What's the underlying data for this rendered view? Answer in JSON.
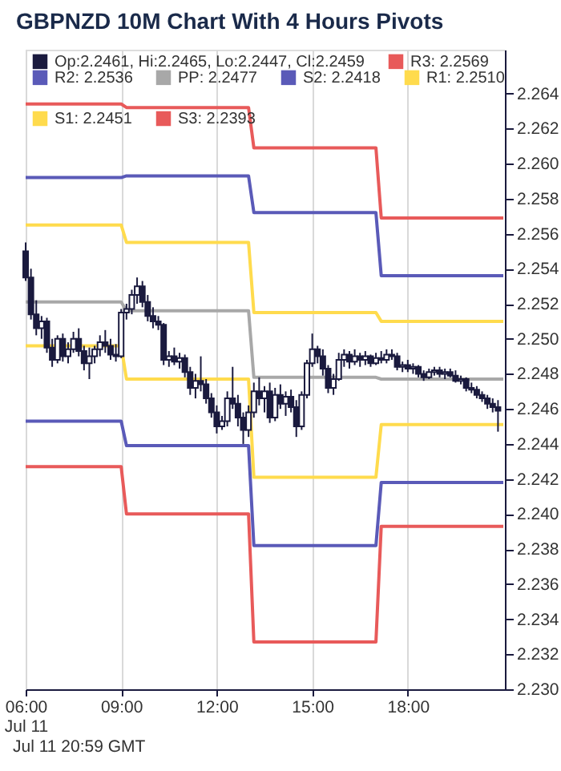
{
  "chart_data": {
    "type": "candlestick",
    "title": "GBPNZD 10M Chart With 4 Hours Pivots",
    "xlim": [
      6,
      21.05
    ],
    "ylim": [
      2.23,
      2.2665
    ],
    "xticks": [
      {
        "value": 6,
        "label": "06:00\nJul 11"
      },
      {
        "value": 9,
        "label": "09:00"
      },
      {
        "value": 12,
        "label": "12:00"
      },
      {
        "value": 15,
        "label": "15:00"
      },
      {
        "value": 18,
        "label": "18:00"
      }
    ],
    "yticks": [
      {
        "value": 2.23,
        "label": "2.230"
      },
      {
        "value": 2.232,
        "label": "2.232"
      },
      {
        "value": 2.234,
        "label": "2.234"
      },
      {
        "value": 2.236,
        "label": "2.236"
      },
      {
        "value": 2.238,
        "label": "2.238"
      },
      {
        "value": 2.24,
        "label": "2.240"
      },
      {
        "value": 2.242,
        "label": "2.242"
      },
      {
        "value": 2.244,
        "label": "2.244"
      },
      {
        "value": 2.246,
        "label": "2.246"
      },
      {
        "value": 2.248,
        "label": "2.248"
      },
      {
        "value": 2.25,
        "label": "2.250"
      },
      {
        "value": 2.252,
        "label": "2.252"
      },
      {
        "value": 2.254,
        "label": "2.254"
      },
      {
        "value": 2.256,
        "label": "2.256"
      },
      {
        "value": 2.258,
        "label": "2.258"
      },
      {
        "value": 2.26,
        "label": "2.260"
      },
      {
        "value": 2.262,
        "label": "2.262"
      },
      {
        "value": 2.264,
        "label": "2.264"
      }
    ],
    "grid": "x",
    "legend": "top left",
    "annotations": [
      "Jul 11 20:59 GMT"
    ],
    "series": [
      {
        "name": "Op:2.2461, Hi:2.2465, Lo:2.2447, Cl:2.2459",
        "type": "candlestick",
        "color": "#1a1a3e",
        "x": [
          6,
          6.1667,
          6.3333,
          6.5,
          6.6667,
          6.8333,
          7,
          7.1667,
          7.3333,
          7.5,
          7.6667,
          7.8333,
          8,
          8.1667,
          8.3333,
          8.5,
          8.6667,
          8.8333,
          9,
          9.1667,
          9.3333,
          9.5,
          9.6667,
          9.8333,
          10,
          10.1667,
          10.3333,
          10.5,
          10.6667,
          10.8333,
          11,
          11.1667,
          11.3333,
          11.5,
          11.6667,
          11.8333,
          12,
          12.1667,
          12.3333,
          12.5,
          12.6667,
          12.8333,
          13,
          13.1667,
          13.3333,
          13.5,
          13.6667,
          13.8333,
          14,
          14.1667,
          14.3333,
          14.5,
          14.6667,
          14.8333,
          15,
          15.1667,
          15.3333,
          15.5,
          15.6667,
          15.8333,
          16,
          16.1667,
          16.3333,
          16.5,
          16.6667,
          16.8333,
          17,
          17.1667,
          17.3333,
          17.5,
          17.6667,
          17.8333,
          18,
          18.1667,
          18.3333,
          18.5,
          18.6667,
          18.8333,
          19,
          19.1667,
          19.3333,
          19.5,
          19.6667,
          19.8333,
          20,
          20.1667,
          20.3333,
          20.5,
          20.6667,
          20.8333
        ],
        "ohlc": [
          [
            2.255,
            2.2555,
            2.2533,
            2.2535
          ],
          [
            2.2535,
            2.254,
            2.2511,
            2.2514
          ],
          [
            2.2514,
            2.2522,
            2.2502,
            2.2506
          ],
          [
            2.2506,
            2.2513,
            2.25,
            2.251
          ],
          [
            2.251,
            2.2512,
            2.2492,
            2.2495
          ],
          [
            2.2495,
            2.25,
            2.2484,
            2.2488
          ],
          [
            2.2488,
            2.2502,
            2.2486,
            2.25
          ],
          [
            2.25,
            2.2503,
            2.2487,
            2.249
          ],
          [
            2.249,
            2.2498,
            2.2486,
            2.2494
          ],
          [
            2.2494,
            2.2504,
            2.2492,
            2.25
          ],
          [
            2.25,
            2.2506,
            2.249,
            2.2493
          ],
          [
            2.2493,
            2.2496,
            2.2482,
            2.2486
          ],
          [
            2.2486,
            2.2495,
            2.2477,
            2.249
          ],
          [
            2.249,
            2.2496,
            2.2486,
            2.2494
          ],
          [
            2.2494,
            2.2502,
            2.249,
            2.2498
          ],
          [
            2.2498,
            2.2505,
            2.2492,
            2.2496
          ],
          [
            2.2496,
            2.25,
            2.2488,
            2.2491
          ],
          [
            2.2491,
            2.2497,
            2.2487,
            2.249
          ],
          [
            2.249,
            2.2517,
            2.2489,
            2.2515
          ],
          [
            2.2515,
            2.252,
            2.2511,
            2.2517
          ],
          [
            2.2517,
            2.2528,
            2.2514,
            2.2525
          ],
          [
            2.2525,
            2.2535,
            2.252,
            2.253
          ],
          [
            2.253,
            2.2533,
            2.2518,
            2.2521
          ],
          [
            2.2521,
            2.2525,
            2.251,
            2.2513
          ],
          [
            2.2513,
            2.2518,
            2.2506,
            2.251
          ],
          [
            2.251,
            2.2513,
            2.2505,
            2.2508
          ],
          [
            2.2508,
            2.2509,
            2.2485,
            2.2488
          ],
          [
            2.2488,
            2.2493,
            2.2484,
            2.249
          ],
          [
            2.249,
            2.2495,
            2.2485,
            2.2487
          ],
          [
            2.2487,
            2.2492,
            2.2483,
            2.2489
          ],
          [
            2.2489,
            2.2491,
            2.2478,
            2.2481
          ],
          [
            2.2481,
            2.2484,
            2.2468,
            2.2472
          ],
          [
            2.2472,
            2.248,
            2.2466,
            2.2476
          ],
          [
            2.2476,
            2.249,
            2.247,
            2.2474
          ],
          [
            2.2474,
            2.2477,
            2.2463,
            2.2466
          ],
          [
            2.2466,
            2.2469,
            2.2455,
            2.2458
          ],
          [
            2.2458,
            2.2462,
            2.2446,
            2.245
          ],
          [
            2.245,
            2.2456,
            2.2448,
            2.2453
          ],
          [
            2.2453,
            2.247,
            2.245,
            2.2466
          ],
          [
            2.2466,
            2.2484,
            2.246,
            2.2463
          ],
          [
            2.2463,
            2.2468,
            2.245,
            2.2455
          ],
          [
            2.2455,
            2.2458,
            2.244,
            2.2448
          ],
          [
            2.2448,
            2.2462,
            2.2444,
            2.2458
          ],
          [
            2.2458,
            2.2475,
            2.2455,
            2.247
          ],
          [
            2.247,
            2.2478,
            2.2462,
            2.2466
          ],
          [
            2.2466,
            2.2473,
            2.2458,
            2.247
          ],
          [
            2.247,
            2.2475,
            2.2452,
            2.2455
          ],
          [
            2.2455,
            2.2472,
            2.2453,
            2.2468
          ],
          [
            2.2468,
            2.2474,
            2.246,
            2.2463
          ],
          [
            2.2463,
            2.247,
            2.2456,
            2.2467
          ],
          [
            2.2467,
            2.2471,
            2.2458,
            2.2461
          ],
          [
            2.2461,
            2.2465,
            2.2444,
            2.245
          ],
          [
            2.245,
            2.247,
            2.2448,
            2.2468
          ],
          [
            2.2468,
            2.2488,
            2.2466,
            2.2486
          ],
          [
            2.2486,
            2.2503,
            2.2484,
            2.2494
          ],
          [
            2.2494,
            2.2496,
            2.2486,
            2.249
          ],
          [
            2.249,
            2.2494,
            2.2479,
            2.2483
          ],
          [
            2.2483,
            2.2485,
            2.2469,
            2.2472
          ],
          [
            2.2472,
            2.248,
            2.2468,
            2.2477
          ],
          [
            2.2477,
            2.2492,
            2.2476,
            2.2488
          ],
          [
            2.2488,
            2.2494,
            2.2484,
            2.2491
          ],
          [
            2.2491,
            2.2493,
            2.2483,
            2.2487
          ],
          [
            2.2487,
            2.2494,
            2.2485,
            2.249
          ],
          [
            2.249,
            2.2492,
            2.2484,
            2.2488
          ],
          [
            2.2488,
            2.2493,
            2.2485,
            2.249
          ],
          [
            2.249,
            2.2491,
            2.2484,
            2.2486
          ],
          [
            2.2486,
            2.2492,
            2.2485,
            2.2489
          ],
          [
            2.2489,
            2.2493,
            2.2486,
            2.2488
          ],
          [
            2.2488,
            2.2494,
            2.2486,
            2.2491
          ],
          [
            2.2491,
            2.2494,
            2.2488,
            2.249
          ],
          [
            2.249,
            2.2492,
            2.2482,
            2.2484
          ],
          [
            2.2484,
            2.2487,
            2.2481,
            2.2485
          ],
          [
            2.2485,
            2.2488,
            2.2481,
            2.2483
          ],
          [
            2.2483,
            2.2486,
            2.248,
            2.2484
          ],
          [
            2.2484,
            2.2485,
            2.2478,
            2.248
          ],
          [
            2.248,
            2.2482,
            2.2476,
            2.2478
          ],
          [
            2.2478,
            2.2483,
            2.2477,
            2.2481
          ],
          [
            2.2481,
            2.2484,
            2.2479,
            2.2482
          ],
          [
            2.2482,
            2.2484,
            2.2478,
            2.248
          ],
          [
            2.248,
            2.2483,
            2.2477,
            2.2481
          ],
          [
            2.2481,
            2.2483,
            2.2478,
            2.2479
          ],
          [
            2.2479,
            2.2482,
            2.2475,
            2.2476
          ],
          [
            2.2476,
            2.2479,
            2.2474,
            2.2477
          ],
          [
            2.2477,
            2.2478,
            2.247,
            2.2472
          ],
          [
            2.2472,
            2.2475,
            2.2469,
            2.2471
          ],
          [
            2.2471,
            2.2473,
            2.2466,
            2.2468
          ],
          [
            2.2468,
            2.247,
            2.2464,
            2.2466
          ],
          [
            2.2466,
            2.2468,
            2.246,
            2.2463
          ],
          [
            2.2463,
            2.2466,
            2.2458,
            2.2461
          ],
          [
            2.2461,
            2.2465,
            2.2447,
            2.2459
          ]
        ]
      },
      {
        "name": "R3: 2.2569",
        "type": "line",
        "color": "#e85a5a",
        "x": [
          6,
          9,
          9.1667,
          13,
          13.1667,
          17,
          17.1667,
          21
        ],
        "values": [
          2.2634,
          2.2634,
          2.2632,
          2.2632,
          2.2609,
          2.2609,
          2.2569,
          2.2569
        ]
      },
      {
        "name": "R2: 2.2536",
        "type": "line",
        "color": "#5a5ab8",
        "x": [
          6,
          9,
          9.1667,
          13,
          13.1667,
          17,
          17.1667,
          21
        ],
        "values": [
          2.2592,
          2.2592,
          2.2593,
          2.2593,
          2.2572,
          2.2572,
          2.2536,
          2.2536
        ]
      },
      {
        "name": "R1: 2.2510",
        "type": "line",
        "color": "#ffdb4d",
        "x": [
          6,
          9,
          9.1667,
          13,
          13.1667,
          17,
          17.1667,
          21
        ],
        "values": [
          2.2565,
          2.2565,
          2.2555,
          2.2555,
          2.2515,
          2.2515,
          2.251,
          2.251
        ]
      },
      {
        "name": "PP: 2.2477",
        "type": "line",
        "color": "#a8a8a8",
        "x": [
          6,
          9,
          9.1667,
          13,
          13.1667,
          17,
          17.1667,
          21
        ],
        "values": [
          2.2521,
          2.2521,
          2.2516,
          2.2516,
          2.2478,
          2.2478,
          2.2477,
          2.2477
        ]
      },
      {
        "name": "S1: 2.2451",
        "type": "line",
        "color": "#ffdb4d",
        "x": [
          6,
          9,
          9.1667,
          13,
          13.1667,
          17,
          17.1667,
          21
        ],
        "values": [
          2.2496,
          2.2496,
          2.2477,
          2.2477,
          2.2421,
          2.2421,
          2.2451,
          2.2451
        ]
      },
      {
        "name": "S2: 2.2418",
        "type": "line",
        "color": "#5a5ab8",
        "x": [
          6,
          9,
          9.1667,
          13,
          13.1667,
          17,
          17.1667,
          21
        ],
        "values": [
          2.2453,
          2.2453,
          2.2439,
          2.2439,
          2.2382,
          2.2382,
          2.2418,
          2.2418
        ]
      },
      {
        "name": "S3: 2.2393",
        "type": "line",
        "color": "#e85a5a",
        "x": [
          6,
          9,
          9.1667,
          13,
          13.1667,
          17,
          17.1667,
          21
        ],
        "values": [
          2.2427,
          2.2427,
          2.24,
          2.24,
          2.2327,
          2.2327,
          2.2393,
          2.2393
        ]
      }
    ]
  }
}
